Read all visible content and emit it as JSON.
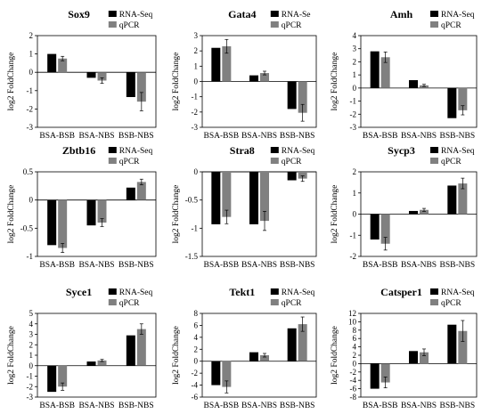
{
  "legend": {
    "rna": "RNA-Seq",
    "qpcr": "qPCR"
  },
  "colors": {
    "rna": "#000000",
    "qpcr": "#808080"
  },
  "chart_data": [
    {
      "type": "bar",
      "title": "Sox9",
      "ylabel": "log2 FoldChange",
      "categories": [
        "BSA-BSB",
        "BSA-NBS",
        "BSB-NBS"
      ],
      "series": [
        {
          "name": "RNA-Seq",
          "values": [
            1.0,
            -0.3,
            -1.35
          ]
        },
        {
          "name": "qPCR",
          "values": [
            0.75,
            -0.45,
            -1.6
          ]
        }
      ],
      "errors": [
        0.12,
        0.15,
        0.5
      ],
      "ylim": [
        -3,
        2
      ],
      "yticks": [
        -3,
        -2,
        -1,
        0,
        1,
        2
      ]
    },
    {
      "type": "bar",
      "title": "Gata4",
      "ylabel": "log2 FoldChange",
      "legend_rna": "RNA-Se",
      "categories": [
        "BSA-BSB",
        "BSA-NBS",
        "BSB-NBS"
      ],
      "series": [
        {
          "name": "RNA-Se",
          "values": [
            2.2,
            0.4,
            -1.8
          ]
        },
        {
          "name": "qPCR",
          "values": [
            2.3,
            0.55,
            -2.05
          ]
        }
      ],
      "errors": [
        0.45,
        0.12,
        0.55
      ],
      "ylim": [
        -3,
        3
      ],
      "yticks": [
        -3,
        -2,
        -1,
        0,
        1,
        2,
        3
      ]
    },
    {
      "type": "bar",
      "title": "Amh",
      "ylabel": "log2 FoldChange",
      "categories": [
        "BSA-BSB",
        "BSA-NBS",
        "BSB-NBS"
      ],
      "series": [
        {
          "name": "RNA-Seq",
          "values": [
            2.8,
            0.6,
            -2.3
          ]
        },
        {
          "name": "qPCR",
          "values": [
            2.35,
            0.2,
            -1.7
          ]
        }
      ],
      "errors": [
        0.4,
        0.08,
        0.35
      ],
      "ylim": [
        -3,
        4
      ],
      "yticks": [
        -3,
        -2,
        -1,
        0,
        1,
        2,
        3,
        4
      ]
    },
    {
      "type": "bar",
      "title": "Zbtb16",
      "ylabel": "log2 FoldChange",
      "categories": [
        "BSA-BSB",
        "BSA-NBS",
        "BSB-NBS"
      ],
      "series": [
        {
          "name": "RNA-Seq",
          "values": [
            -0.8,
            -0.45,
            0.22
          ]
        },
        {
          "name": "qPCR",
          "values": [
            -0.85,
            -0.4,
            0.32
          ]
        }
      ],
      "errors": [
        0.08,
        0.07,
        0.05
      ],
      "ylim": [
        -1,
        0.5
      ],
      "yticks": [
        -1,
        -0.5,
        0,
        0.5
      ]
    },
    {
      "type": "bar",
      "title": "Stra8",
      "ylabel": "log2 FoldChange",
      "categories": [
        "BSA-BSB",
        "BSA-NBS",
        "BSB-NBS"
      ],
      "series": [
        {
          "name": "RNA-Seq",
          "values": [
            -0.93,
            -0.93,
            -0.15
          ]
        },
        {
          "name": "qPCR",
          "values": [
            -0.8,
            -0.87,
            -0.12
          ]
        }
      ],
      "errors": [
        0.12,
        0.17,
        0.05
      ],
      "ylim": [
        -1.5,
        0
      ],
      "yticks": [
        -1.5,
        -1,
        -0.5,
        0
      ]
    },
    {
      "type": "bar",
      "title": "Sycp3",
      "ylabel": "log2 FoldChange",
      "categories": [
        "BSA-BSB",
        "BSA-NBS",
        "BSB-NBS"
      ],
      "series": [
        {
          "name": "RNA-Seq",
          "values": [
            -1.2,
            0.15,
            1.35
          ]
        },
        {
          "name": "qPCR",
          "values": [
            -1.4,
            0.2,
            1.45
          ]
        }
      ],
      "errors": [
        0.3,
        0.07,
        0.25
      ],
      "ylim": [
        -2,
        2
      ],
      "yticks": [
        -2,
        -1,
        0,
        1,
        2
      ]
    },
    {
      "type": "bar",
      "title": "Syce1",
      "ylabel": "log2 FoldChange",
      "categories": [
        "BSA-BSB",
        "BSA-NBS",
        "BSB-NBS"
      ],
      "series": [
        {
          "name": "RNA-Seq",
          "values": [
            -2.5,
            0.4,
            2.9
          ]
        },
        {
          "name": "qPCR",
          "values": [
            -2.0,
            0.5,
            3.5
          ]
        }
      ],
      "errors": [
        0.35,
        0.1,
        0.5
      ],
      "ylim": [
        -3,
        5
      ],
      "yticks": [
        -3,
        -2,
        -1,
        0,
        1,
        2,
        3,
        4,
        5
      ]
    },
    {
      "type": "bar",
      "title": "Tekt1",
      "ylabel": "log2 FoldChange",
      "categories": [
        "BSA-BSB",
        "BSA-NBS",
        "BSB-NBS"
      ],
      "series": [
        {
          "name": "RNA-Seq",
          "values": [
            -4.0,
            1.5,
            5.5
          ]
        },
        {
          "name": "qPCR",
          "values": [
            -4.3,
            1.0,
            6.2
          ]
        }
      ],
      "errors": [
        1.0,
        0.3,
        1.2
      ],
      "ylim": [
        -6,
        8
      ],
      "yticks": [
        -6,
        -4,
        -2,
        0,
        2,
        4,
        6,
        8
      ]
    },
    {
      "type": "bar",
      "title": "Catsper1",
      "ylabel": "log2 FoldChange",
      "categories": [
        "BSA-BSB",
        "BSA-NBS",
        "BSB-NBS"
      ],
      "series": [
        {
          "name": "RNA-Seq",
          "values": [
            -6.0,
            3.0,
            9.3
          ]
        },
        {
          "name": "qPCR",
          "values": [
            -4.5,
            2.7,
            7.8
          ]
        }
      ],
      "errors": [
        1.3,
        0.8,
        2.5
      ],
      "ylim": [
        -8,
        12
      ],
      "yticks": [
        -8,
        -6,
        -4,
        -2,
        0,
        2,
        4,
        6,
        8,
        10,
        12
      ]
    }
  ]
}
